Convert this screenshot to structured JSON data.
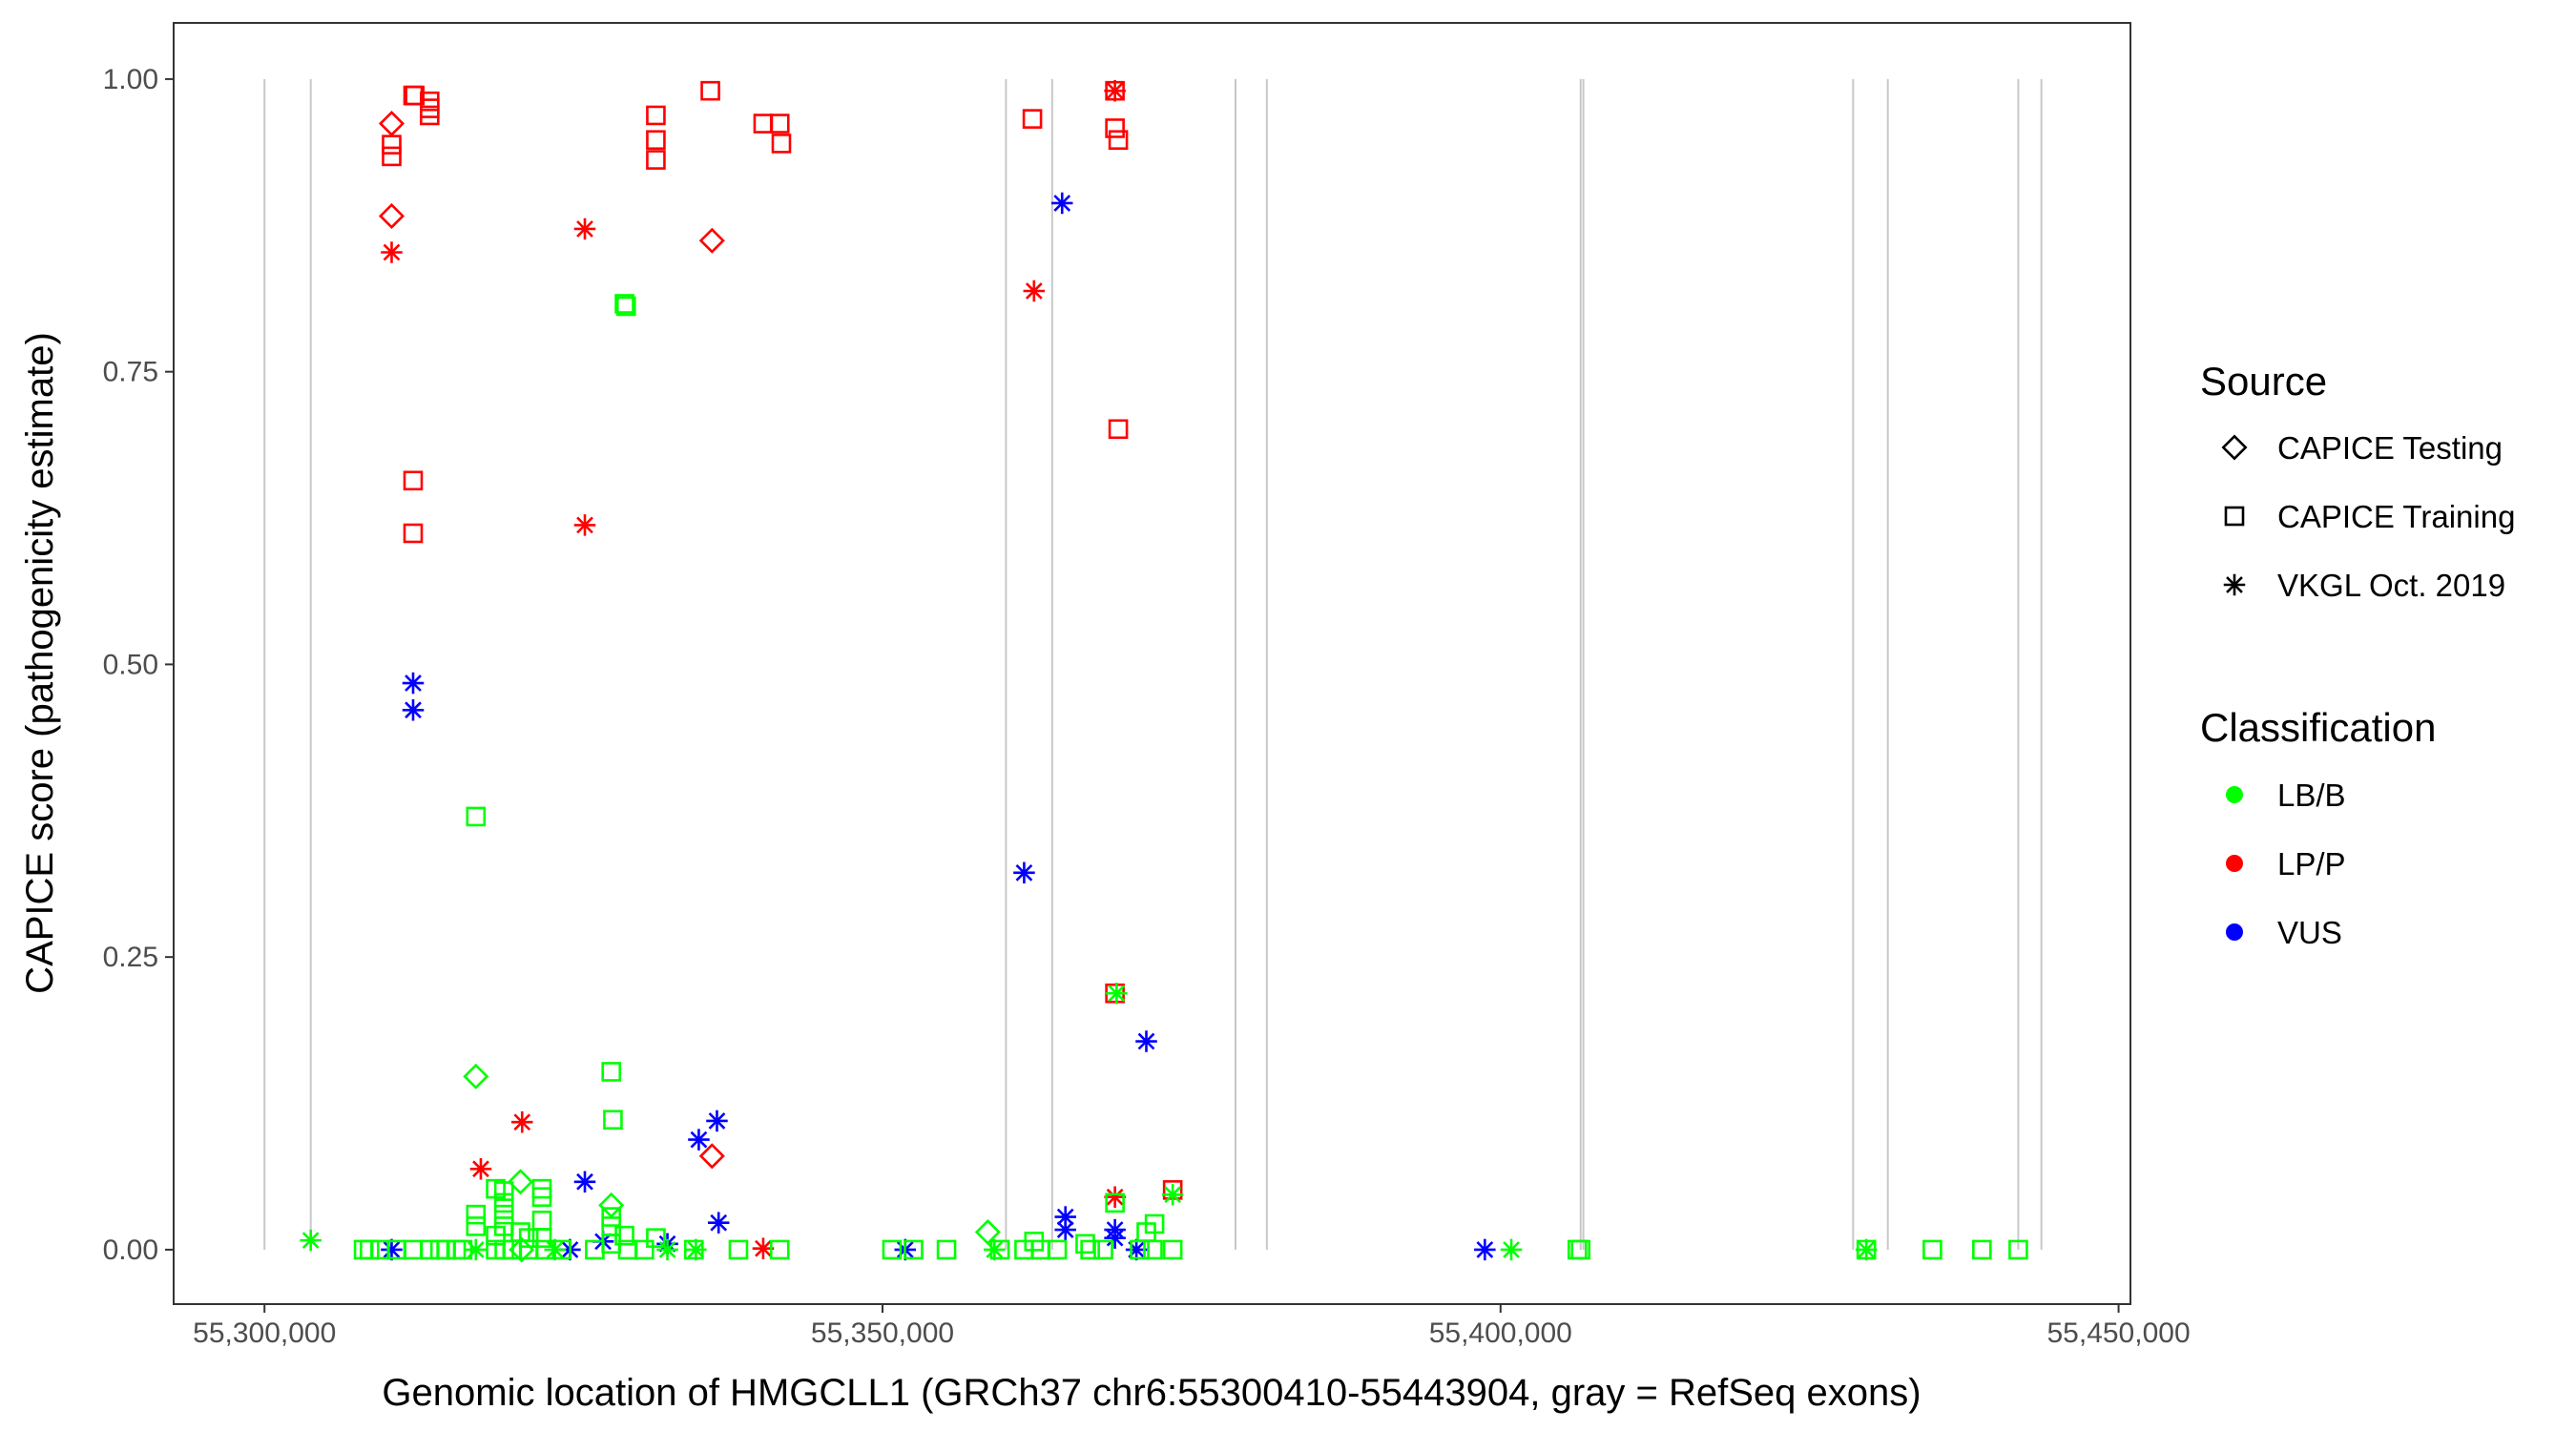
{
  "chart_data": {
    "type": "scatter",
    "title": "",
    "xlabel": "Genomic location of HMGCLL1 (GRCh37 chr6:55300410-55443904, gray = RefSeq exons)",
    "ylabel": "CAPICE score (pathogenicity estimate)",
    "xlim": [
      55292650,
      55450960
    ],
    "ylim": [
      -0.0465,
      1.048
    ],
    "xticks": [
      55300000,
      55350000,
      55400000,
      55450000
    ],
    "xtick_labels": [
      "55,300,000",
      "55,350,000",
      "55,400,000",
      "55,450,000"
    ],
    "yticks": [
      0,
      0.25,
      0.5,
      0.75,
      1.0
    ],
    "ytick_labels": [
      "0.00",
      "0.25",
      "0.50",
      "0.75",
      "1.00"
    ],
    "grid": false,
    "exons": [
      55300000,
      55303741,
      55359986,
      55363727,
      55378557,
      55381095,
      55406480,
      55406700,
      55428524,
      55431330,
      55441884,
      55443754
    ],
    "exon_color": "#c8c8c8",
    "legend": {
      "placement": "right",
      "source_title": "Source",
      "sources": [
        {
          "key": "D",
          "label": "CAPICE Testing",
          "shape": "diamond"
        },
        {
          "key": "S",
          "label": "CAPICE Training",
          "shape": "square"
        },
        {
          "key": "A",
          "label": "VKGL Oct. 2019",
          "shape": "asterisk"
        }
      ],
      "class_title": "Classification",
      "classes": [
        {
          "key": "LB/B",
          "label": "LB/B",
          "color": "#00ff00"
        },
        {
          "key": "LP/P",
          "label": "LP/P",
          "color": "#ff0000"
        },
        {
          "key": "VUS",
          "label": "VUS",
          "color": "#0000ff"
        }
      ]
    },
    "points": [
      [
        55310287,
        0.962,
        "D",
        "LP/P"
      ],
      [
        55310287,
        0.944,
        "S",
        "LP/P"
      ],
      [
        55310287,
        0.934,
        "S",
        "LP/P"
      ],
      [
        55310287,
        0.883,
        "D",
        "LP/P"
      ],
      [
        55310287,
        0.852,
        "A",
        "LP/P"
      ],
      [
        55312024,
        0.986,
        "S",
        "LP/P"
      ],
      [
        55312158,
        0.986,
        "S",
        "LP/P"
      ],
      [
        55313360,
        0.981,
        "S",
        "LP/P"
      ],
      [
        55313360,
        0.975,
        "S",
        "LP/P"
      ],
      [
        55313360,
        0.969,
        "S",
        "LP/P"
      ],
      [
        55312024,
        0.657,
        "S",
        "LP/P"
      ],
      [
        55312024,
        0.612,
        "S",
        "LP/P"
      ],
      [
        55325918,
        0.872,
        "A",
        "LP/P"
      ],
      [
        55325918,
        0.619,
        "A",
        "LP/P"
      ],
      [
        55331663,
        0.969,
        "S",
        "LP/P"
      ],
      [
        55331663,
        0.948,
        "S",
        "LP/P"
      ],
      [
        55331663,
        0.931,
        "S",
        "LP/P"
      ],
      [
        55336072,
        0.99,
        "S",
        "LP/P"
      ],
      [
        55336206,
        0.862,
        "D",
        "LP/P"
      ],
      [
        55340347,
        0.962,
        "S",
        "LP/P"
      ],
      [
        55341683,
        0.962,
        "S",
        "LP/P"
      ],
      [
        55341817,
        0.945,
        "S",
        "LP/P"
      ],
      [
        55362124,
        0.966,
        "S",
        "LP/P"
      ],
      [
        55362258,
        0.819,
        "A",
        "LP/P"
      ],
      [
        55368804,
        0.99,
        "S",
        "LP/P"
      ],
      [
        55368804,
        0.99,
        "A",
        "LP/P"
      ],
      [
        55368804,
        0.958,
        "S",
        "LP/P"
      ],
      [
        55369072,
        0.948,
        "S",
        "LP/P"
      ],
      [
        55369072,
        0.701,
        "S",
        "LP/P"
      ],
      [
        55368804,
        0.219,
        "S",
        "LP/P"
      ],
      [
        55368804,
        0.045,
        "A",
        "LP/P"
      ],
      [
        55373476,
        0.051,
        "S",
        "LP/P"
      ],
      [
        55336206,
        0.08,
        "D",
        "LP/P"
      ],
      [
        55317502,
        0.069,
        "A",
        "LP/P"
      ],
      [
        55320842,
        0.109,
        "A",
        "LP/P"
      ],
      [
        55340347,
        0.001,
        "A",
        "LP/P"
      ],
      [
        55312024,
        0.484,
        "A",
        "VUS"
      ],
      [
        55312024,
        0.461,
        "A",
        "VUS"
      ],
      [
        55364529,
        0.894,
        "A",
        "VUS"
      ],
      [
        55361456,
        0.322,
        "A",
        "VUS"
      ],
      [
        55371342,
        0.178,
        "A",
        "VUS"
      ],
      [
        55325918,
        0.058,
        "A",
        "VUS"
      ],
      [
        55335137,
        0.094,
        "A",
        "VUS"
      ],
      [
        55336606,
        0.11,
        "A",
        "VUS"
      ],
      [
        55336740,
        0.023,
        "A",
        "VUS"
      ],
      [
        55364796,
        0.028,
        "A",
        "VUS"
      ],
      [
        55364796,
        0.017,
        "A",
        "VUS"
      ],
      [
        55368804,
        0.01,
        "A",
        "VUS"
      ],
      [
        55368804,
        0.017,
        "A",
        "VUS"
      ],
      [
        55310287,
        0.0,
        "A",
        "VUS"
      ],
      [
        55324716,
        0.0,
        "A",
        "VUS"
      ],
      [
        55327388,
        0.007,
        "A",
        "VUS"
      ],
      [
        55332598,
        0.005,
        "A",
        "VUS"
      ],
      [
        55351836,
        0.0,
        "A",
        "VUS"
      ],
      [
        55398730,
        0.0,
        "A",
        "VUS"
      ],
      [
        55370540,
        0.0,
        "A",
        "VUS"
      ],
      [
        55303741,
        0.008,
        "A",
        "LB/B"
      ],
      [
        55317101,
        0.37,
        "S",
        "LB/B"
      ],
      [
        55317101,
        0.148,
        "D",
        "LB/B"
      ],
      [
        55328056,
        0.152,
        "S",
        "LB/B"
      ],
      [
        55328190,
        0.111,
        "S",
        "LB/B"
      ],
      [
        55329124,
        0.808,
        "S",
        "LB/B"
      ],
      [
        55329258,
        0.806,
        "S",
        "LB/B"
      ],
      [
        55320708,
        0.058,
        "D",
        "LB/B"
      ],
      [
        55328056,
        0.038,
        "D",
        "LB/B"
      ],
      [
        55358517,
        0.015,
        "D",
        "LB/B"
      ],
      [
        55368938,
        0.219,
        "A",
        "LB/B"
      ],
      [
        55373476,
        0.047,
        "A",
        "LB/B"
      ],
      [
        55318704,
        0.052,
        "S",
        "LB/B"
      ],
      [
        55319372,
        0.05,
        "S",
        "LB/B"
      ],
      [
        55319372,
        0.04,
        "S",
        "LB/B"
      ],
      [
        55319372,
        0.03,
        "S",
        "LB/B"
      ],
      [
        55319372,
        0.02,
        "S",
        "LB/B"
      ],
      [
        55317101,
        0.03,
        "S",
        "LB/B"
      ],
      [
        55317101,
        0.02,
        "S",
        "LB/B"
      ],
      [
        55322444,
        0.052,
        "S",
        "LB/B"
      ],
      [
        55322444,
        0.045,
        "S",
        "LB/B"
      ],
      [
        55322444,
        0.025,
        "S",
        "LB/B"
      ],
      [
        55320708,
        0.015,
        "S",
        "LB/B"
      ],
      [
        55321376,
        0.01,
        "S",
        "LB/B"
      ],
      [
        55318704,
        0.012,
        "S",
        "LB/B"
      ],
      [
        55322444,
        0.01,
        "S",
        "LB/B"
      ],
      [
        55328056,
        0.028,
        "S",
        "LB/B"
      ],
      [
        55328056,
        0.02,
        "S",
        "LB/B"
      ],
      [
        55329124,
        0.012,
        "S",
        "LB/B"
      ],
      [
        55331663,
        0.01,
        "S",
        "LB/B"
      ],
      [
        55362258,
        0.007,
        "S",
        "LB/B"
      ],
      [
        55368804,
        0.04,
        "S",
        "LB/B"
      ],
      [
        55372006,
        0.022,
        "S",
        "LB/B"
      ],
      [
        55371342,
        0.015,
        "S",
        "LB/B"
      ],
      [
        55366400,
        0.005,
        "S",
        "LB/B"
      ],
      [
        55308016,
        0.0,
        "S",
        "LB/B"
      ],
      [
        55308500,
        0.0,
        "S",
        "LB/B"
      ],
      [
        55309352,
        0.0,
        "S",
        "LB/B"
      ],
      [
        55310688,
        0.0,
        "S",
        "LB/B"
      ],
      [
        55312024,
        0.0,
        "S",
        "LB/B"
      ],
      [
        55313360,
        0.0,
        "S",
        "LB/B"
      ],
      [
        55314200,
        0.0,
        "S",
        "LB/B"
      ],
      [
        55314696,
        0.0,
        "S",
        "LB/B"
      ],
      [
        55315500,
        0.0,
        "S",
        "LB/B"
      ],
      [
        55316032,
        0.0,
        "S",
        "LB/B"
      ],
      [
        55317101,
        0.0,
        "A",
        "LB/B"
      ],
      [
        55318704,
        0.0,
        "S",
        "LB/B"
      ],
      [
        55319400,
        0.0,
        "S",
        "LB/B"
      ],
      [
        55320040,
        0.0,
        "S",
        "LB/B"
      ],
      [
        55320800,
        0.0,
        "D",
        "LB/B"
      ],
      [
        55321376,
        0.0,
        "S",
        "LB/B"
      ],
      [
        55322712,
        0.0,
        "S",
        "LB/B"
      ],
      [
        55323500,
        0.0,
        "A",
        "LB/B"
      ],
      [
        55324048,
        0.0,
        "S",
        "LB/B"
      ],
      [
        55326720,
        0.0,
        "S",
        "LB/B"
      ],
      [
        55328056,
        0.005,
        "S",
        "LB/B"
      ],
      [
        55329392,
        0.0,
        "S",
        "LB/B"
      ],
      [
        55330728,
        0.0,
        "S",
        "LB/B"
      ],
      [
        55332598,
        0.0,
        "A",
        "LB/B"
      ],
      [
        55334736,
        0.0,
        "S",
        "LB/B"
      ],
      [
        55334900,
        0.0,
        "A",
        "LB/B"
      ],
      [
        55338343,
        0.0,
        "S",
        "LB/B"
      ],
      [
        55341683,
        0.0,
        "S",
        "LB/B"
      ],
      [
        55350768,
        0.0,
        "S",
        "LB/B"
      ],
      [
        55352505,
        0.0,
        "S",
        "LB/B"
      ],
      [
        55355177,
        0.0,
        "S",
        "LB/B"
      ],
      [
        55359051,
        0.0,
        "A",
        "LB/B"
      ],
      [
        55359500,
        0.0,
        "S",
        "LB/B"
      ],
      [
        55361456,
        0.0,
        "S",
        "LB/B"
      ],
      [
        55362792,
        0.0,
        "S",
        "LB/B"
      ],
      [
        55364128,
        0.0,
        "S",
        "LB/B"
      ],
      [
        55366800,
        0.0,
        "S",
        "LB/B"
      ],
      [
        55367869,
        0.0,
        "S",
        "LB/B"
      ],
      [
        55370808,
        0.0,
        "S",
        "LB/B"
      ],
      [
        55371877,
        0.0,
        "S",
        "LB/B"
      ],
      [
        55373476,
        0.0,
        "S",
        "LB/B"
      ],
      [
        55400868,
        0.0,
        "A",
        "LB/B"
      ],
      [
        55406212,
        0.0,
        "S",
        "LB/B"
      ],
      [
        55406480,
        0.0,
        "S",
        "LB/B"
      ],
      [
        55429592,
        0.0,
        "S",
        "LB/B"
      ],
      [
        55429592,
        0.0,
        "A",
        "LB/B"
      ],
      [
        55434936,
        0.0,
        "S",
        "LB/B"
      ],
      [
        55438944,
        0.0,
        "S",
        "LB/B"
      ],
      [
        55441883,
        0.0,
        "S",
        "LB/B"
      ]
    ]
  }
}
